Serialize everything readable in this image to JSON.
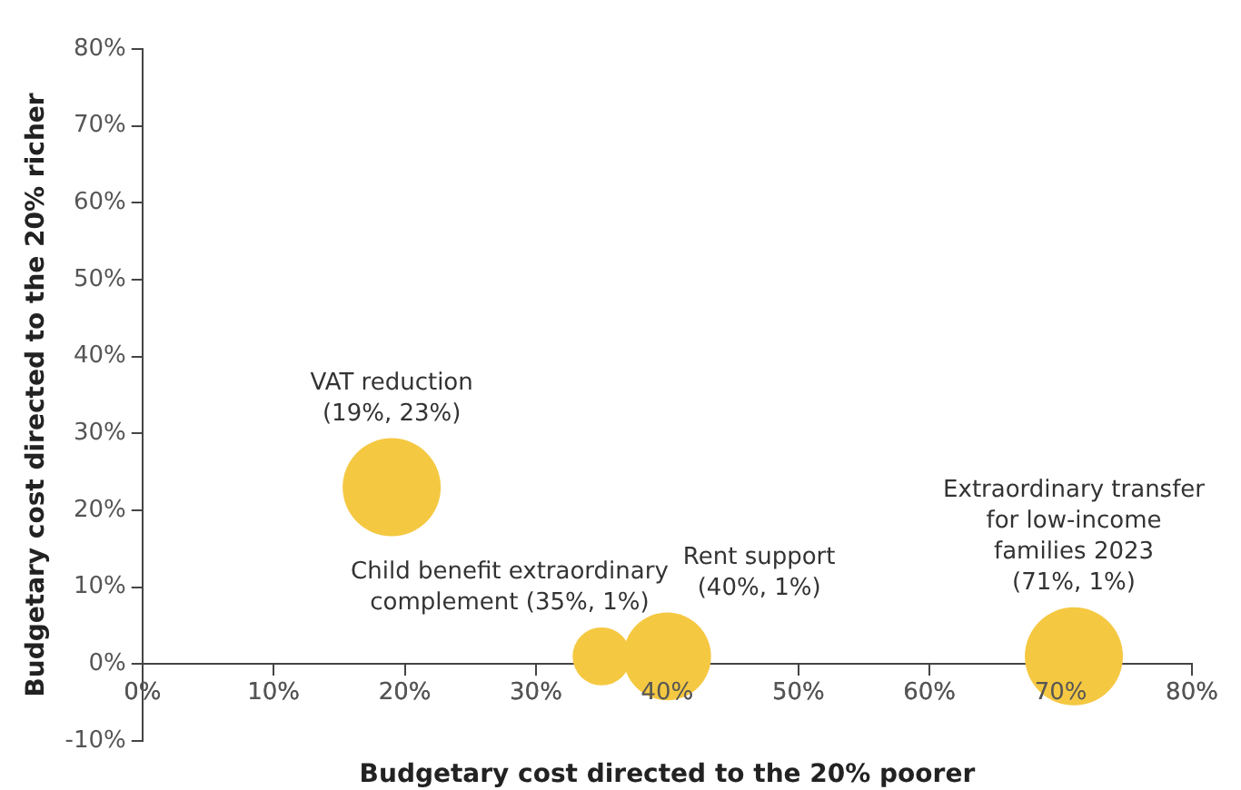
{
  "chart_data": {
    "type": "bubble",
    "xlabel": "Budgetary cost directed to the 20% poorer",
    "ylabel": "Budgetary cost directed to the 20% richer",
    "series": [
      {
        "color": "#f5c842",
        "x": [
          19,
          35,
          40,
          71
        ],
        "values": [
          23,
          1,
          1,
          1
        ],
        "sizes": [
          1,
          0.35,
          0.8,
          1
        ]
      }
    ],
    "xlim": [
      0,
      80
    ],
    "xticks": [
      {
        "value": 0,
        "label": "0%"
      },
      {
        "value": 10,
        "label": "10%"
      },
      {
        "value": 20,
        "label": "20%"
      },
      {
        "value": 30,
        "label": "30%"
      },
      {
        "value": 40,
        "label": "40%"
      },
      {
        "value": 50,
        "label": "50%"
      },
      {
        "value": 60,
        "label": "60%"
      },
      {
        "value": 70,
        "label": "70%"
      },
      {
        "value": 80,
        "label": "80%"
      }
    ],
    "ylim": [
      -10,
      80
    ],
    "yticks": [
      {
        "value": -10,
        "label": "-10%"
      },
      {
        "value": 0,
        "label": "0%"
      },
      {
        "value": 10,
        "label": "10%"
      },
      {
        "value": 20,
        "label": "20%"
      },
      {
        "value": 30,
        "label": "30%"
      },
      {
        "value": 40,
        "label": "40%"
      },
      {
        "value": 50,
        "label": "50%"
      },
      {
        "value": 60,
        "label": "60%"
      },
      {
        "value": 70,
        "label": "70%"
      },
      {
        "value": 80,
        "label": "80%"
      }
    ],
    "grid": false,
    "legend": false,
    "annotations": [
      {
        "text": "VAT reduction\n(19%, 23%)",
        "x": 19,
        "y": 23
      },
      {
        "text": "Child benefit extraordinary\ncomplement (35%, 1%)",
        "x": 35,
        "y": 1
      },
      {
        "text": "Rent support\n(40%, 1%)",
        "x": 40,
        "y": 1
      },
      {
        "text": "Extraordinary transfer\nfor low-income\nfamilies 2023\n(71%, 1%)",
        "x": 71,
        "y": 1
      }
    ]
  }
}
